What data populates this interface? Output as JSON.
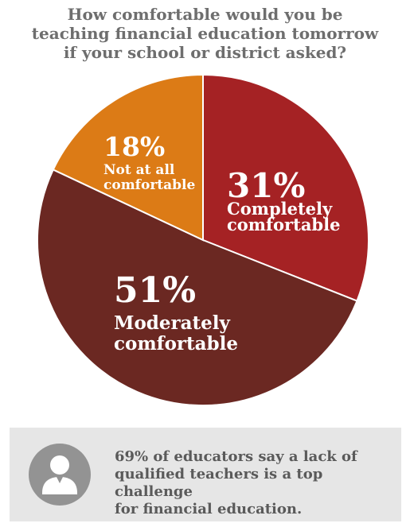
{
  "chart_data": {
    "type": "pie",
    "title": "How comfortable would you be\nteaching financial education tomorrow\nif your school or district asked?",
    "slices": [
      {
        "label": "Completely\ncomfortable",
        "value": 31,
        "value_label": "31%",
        "color": "#a52224"
      },
      {
        "label": "Moderately\ncomfortable",
        "value": 51,
        "value_label": "51%",
        "color": "#6b2822"
      },
      {
        "label": "Not at all\ncomfortable",
        "value": 18,
        "value_label": "18%",
        "color": "#dc7b16"
      }
    ],
    "start": "top, clockwise"
  },
  "callout": {
    "icon": "person-icon",
    "text": "69% of educators say a lack of\nqualified teachers is a top challenge\nfor financial education.",
    "background": "#e6e6e6",
    "icon_color": "#939393"
  }
}
